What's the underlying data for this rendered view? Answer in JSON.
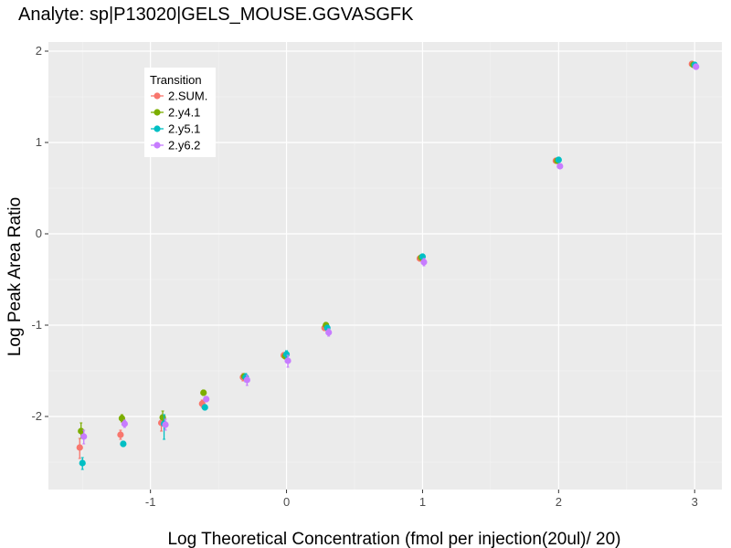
{
  "chart_data": {
    "type": "scatter",
    "title": "Analyte: sp|P13020|GELS_MOUSE.GGVASGFK",
    "xlabel": "Log Theoretical Concentration (fmol per injection(20ul)/ 20)",
    "ylabel": "Log Peak Area Ratio",
    "xlim": [
      -1.75,
      3.2
    ],
    "ylim": [
      -2.8,
      2.1
    ],
    "x_ticks": [
      -1,
      0,
      1,
      2,
      3
    ],
    "x_tick_labels": [
      "-1",
      "0",
      "1",
      "2",
      "3"
    ],
    "y_ticks": [
      -2,
      -1,
      0,
      1,
      2
    ],
    "y_tick_labels": [
      "-2",
      "-1",
      "0",
      "1",
      "2"
    ],
    "grid": true,
    "legend": {
      "title": "Transition",
      "position": "top-left"
    },
    "series": [
      {
        "name": "2.SUM.",
        "color": "#F8766D",
        "points": [
          {
            "x": -1.52,
            "y": -2.34,
            "lo": -2.46,
            "hi": -2.24
          },
          {
            "x": -1.22,
            "y": -2.2,
            "lo": -2.25,
            "hi": -2.15
          },
          {
            "x": -0.92,
            "y": -2.07,
            "lo": -2.16,
            "hi": -2.0
          },
          {
            "x": -0.62,
            "y": -1.86,
            "lo": -1.9,
            "hi": -1.82
          },
          {
            "x": -0.32,
            "y": -1.57,
            "lo": -1.61,
            "hi": -1.53
          },
          {
            "x": -0.02,
            "y": -1.33,
            "lo": -1.36,
            "hi": -1.3
          },
          {
            "x": 0.28,
            "y": -1.03,
            "lo": -1.06,
            "hi": -1.0
          },
          {
            "x": 0.98,
            "y": -0.27,
            "lo": -0.3,
            "hi": -0.24
          },
          {
            "x": 1.98,
            "y": 0.8,
            "lo": 0.78,
            "hi": 0.82
          },
          {
            "x": 2.98,
            "y": 1.86,
            "lo": 1.84,
            "hi": 1.88
          }
        ]
      },
      {
        "name": "2.y4.1",
        "color": "#7CAE00",
        "points": [
          {
            "x": -1.51,
            "y": -2.16,
            "lo": -2.24,
            "hi": -2.07
          },
          {
            "x": -1.21,
            "y": -2.02,
            "lo": -2.06,
            "hi": -1.98
          },
          {
            "x": -0.91,
            "y": -2.01,
            "lo": -2.08,
            "hi": -1.94
          },
          {
            "x": -0.61,
            "y": -1.74,
            "lo": -1.77,
            "hi": -1.71
          },
          {
            "x": -0.31,
            "y": -1.56,
            "lo": -1.59,
            "hi": -1.53
          },
          {
            "x": -0.01,
            "y": -1.34,
            "lo": -1.37,
            "hi": -1.31
          },
          {
            "x": 0.29,
            "y": -1.0,
            "lo": -1.03,
            "hi": -0.97
          },
          {
            "x": 0.99,
            "y": -0.26,
            "lo": -0.29,
            "hi": -0.23
          },
          {
            "x": 1.99,
            "y": 0.8,
            "lo": 0.78,
            "hi": 0.82
          },
          {
            "x": 2.99,
            "y": 1.85,
            "lo": 1.83,
            "hi": 1.87
          }
        ]
      },
      {
        "name": "2.y5.1",
        "color": "#00BFC4",
        "points": [
          {
            "x": -1.5,
            "y": -2.51,
            "lo": -2.58,
            "hi": -2.45
          },
          {
            "x": -1.2,
            "y": -2.3,
            "lo": -2.33,
            "hi": -2.27
          },
          {
            "x": -0.9,
            "y": -2.08,
            "lo": -2.25,
            "hi": -1.98
          },
          {
            "x": -0.6,
            "y": -1.9,
            "lo": -1.93,
            "hi": -1.87
          },
          {
            "x": -0.3,
            "y": -1.57,
            "lo": -1.62,
            "hi": -1.53
          },
          {
            "x": 0.0,
            "y": -1.32,
            "lo": -1.36,
            "hi": -1.28
          },
          {
            "x": 0.3,
            "y": -1.03,
            "lo": -1.06,
            "hi": -1.0
          },
          {
            "x": 1.0,
            "y": -0.25,
            "lo": -0.28,
            "hi": -0.22
          },
          {
            "x": 2.0,
            "y": 0.81,
            "lo": 0.79,
            "hi": 0.83
          },
          {
            "x": 3.0,
            "y": 1.85,
            "lo": 1.83,
            "hi": 1.87
          }
        ]
      },
      {
        "name": "2.y6.2",
        "color": "#C77CFF",
        "points": [
          {
            "x": -1.49,
            "y": -2.22,
            "lo": -2.3,
            "hi": -2.15
          },
          {
            "x": -1.19,
            "y": -2.08,
            "lo": -2.12,
            "hi": -2.04
          },
          {
            "x": -0.89,
            "y": -2.09,
            "lo": -2.15,
            "hi": -2.03
          },
          {
            "x": -0.59,
            "y": -1.81,
            "lo": -1.84,
            "hi": -1.78
          },
          {
            "x": -0.29,
            "y": -1.6,
            "lo": -1.66,
            "hi": -1.55
          },
          {
            "x": 0.01,
            "y": -1.39,
            "lo": -1.46,
            "hi": -1.33
          },
          {
            "x": 0.31,
            "y": -1.08,
            "lo": -1.12,
            "hi": -1.04
          },
          {
            "x": 1.01,
            "y": -0.31,
            "lo": -0.35,
            "hi": -0.27
          },
          {
            "x": 2.01,
            "y": 0.74,
            "lo": 0.72,
            "hi": 0.76
          },
          {
            "x": 3.01,
            "y": 1.83,
            "lo": 1.8,
            "hi": 1.86
          }
        ]
      }
    ]
  }
}
